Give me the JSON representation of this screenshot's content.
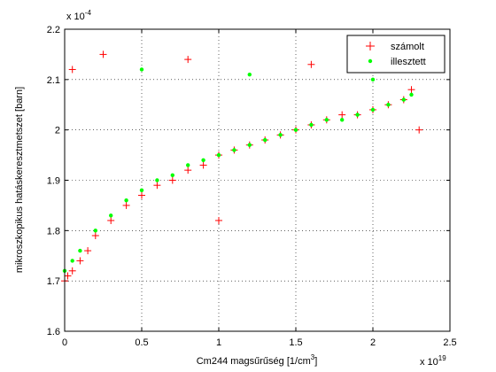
{
  "chart_data": {
    "type": "scatter",
    "xlabel": "Cm244  magsűrűség [1/cm",
    "xlabel_sup": "3",
    "xlabel_tail": "]",
    "ylabel": "mikroszkopikus hatáskeresztmetszet [barn]",
    "x_exponent": "x 10",
    "x_exponent_power": "19",
    "y_exponent": "x 10",
    "y_exponent_power": "-4",
    "xlim": [
      0,
      2.5
    ],
    "ylim": [
      1.6,
      2.2
    ],
    "xticks": [
      "0",
      "0.5",
      "1",
      "1.5",
      "2",
      "2.5"
    ],
    "xtick_values": [
      0,
      0.5,
      1,
      1.5,
      2,
      2.5
    ],
    "yticks": [
      "1.6",
      "1.7",
      "1.8",
      "1.9",
      "2",
      "2.1",
      "2.2"
    ],
    "ytick_values": [
      1.6,
      1.7,
      1.8,
      1.9,
      2.0,
      2.1,
      2.2
    ],
    "grid": true,
    "legend_position": "top-right",
    "series": [
      {
        "name": "számolt",
        "marker": "plus",
        "color": "#ff0000",
        "points": [
          [
            0.0,
            1.7
          ],
          [
            0.02,
            1.71
          ],
          [
            0.05,
            1.72
          ],
          [
            0.1,
            1.74
          ],
          [
            0.15,
            1.76
          ],
          [
            0.2,
            1.79
          ],
          [
            0.3,
            1.82
          ],
          [
            0.4,
            1.85
          ],
          [
            0.5,
            1.87
          ],
          [
            0.6,
            1.89
          ],
          [
            0.7,
            1.9
          ],
          [
            0.8,
            1.92
          ],
          [
            0.9,
            1.93
          ],
          [
            1.0,
            1.82
          ],
          [
            1.0,
            1.95
          ],
          [
            1.1,
            1.96
          ],
          [
            1.2,
            1.97
          ],
          [
            1.3,
            1.98
          ],
          [
            1.4,
            1.99
          ],
          [
            1.5,
            2.0
          ],
          [
            1.6,
            2.01
          ],
          [
            1.7,
            2.02
          ],
          [
            1.8,
            2.03
          ],
          [
            1.9,
            2.03
          ],
          [
            2.0,
            2.04
          ],
          [
            2.1,
            2.05
          ],
          [
            2.2,
            2.06
          ],
          [
            2.25,
            2.08
          ],
          [
            2.3,
            2.0
          ],
          [
            0.25,
            2.15
          ],
          [
            0.8,
            2.14
          ],
          [
            0.05,
            2.12
          ],
          [
            1.6,
            2.13
          ],
          [
            2.05,
            2.12
          ]
        ]
      },
      {
        "name": "illesztett",
        "marker": "dot",
        "color": "#00ff00",
        "points": [
          [
            0.0,
            1.72
          ],
          [
            0.05,
            1.74
          ],
          [
            0.1,
            1.76
          ],
          [
            0.2,
            1.8
          ],
          [
            0.3,
            1.83
          ],
          [
            0.4,
            1.86
          ],
          [
            0.5,
            1.88
          ],
          [
            0.6,
            1.9
          ],
          [
            0.7,
            1.91
          ],
          [
            0.8,
            1.93
          ],
          [
            0.9,
            1.94
          ],
          [
            1.0,
            1.95
          ],
          [
            1.1,
            1.96
          ],
          [
            1.2,
            1.97
          ],
          [
            1.3,
            1.98
          ],
          [
            1.4,
            1.99
          ],
          [
            1.5,
            2.0
          ],
          [
            1.6,
            2.01
          ],
          [
            1.7,
            2.02
          ],
          [
            1.8,
            2.02
          ],
          [
            1.9,
            2.03
          ],
          [
            2.0,
            2.04
          ],
          [
            2.1,
            2.05
          ],
          [
            2.2,
            2.06
          ],
          [
            2.25,
            2.07
          ],
          [
            0.5,
            2.12
          ],
          [
            1.2,
            2.11
          ],
          [
            2.0,
            2.1
          ]
        ]
      }
    ]
  }
}
